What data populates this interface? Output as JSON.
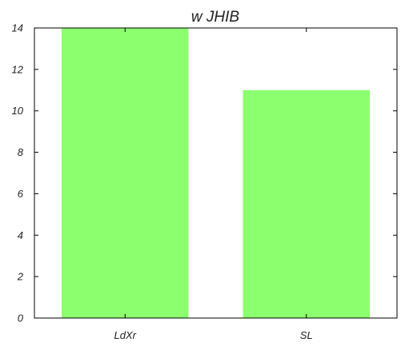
{
  "chart_data": {
    "type": "bar",
    "title": "w JHIB",
    "categories": [
      "LdXr",
      "SL"
    ],
    "values": [
      14,
      11
    ],
    "ylim": [
      0,
      14
    ],
    "yticks": [
      0,
      2,
      4,
      6,
      8,
      10,
      12,
      14
    ],
    "xlabel": "",
    "ylabel": "",
    "bar_color": "#8cff6e",
    "grid": false,
    "legend": "none"
  }
}
